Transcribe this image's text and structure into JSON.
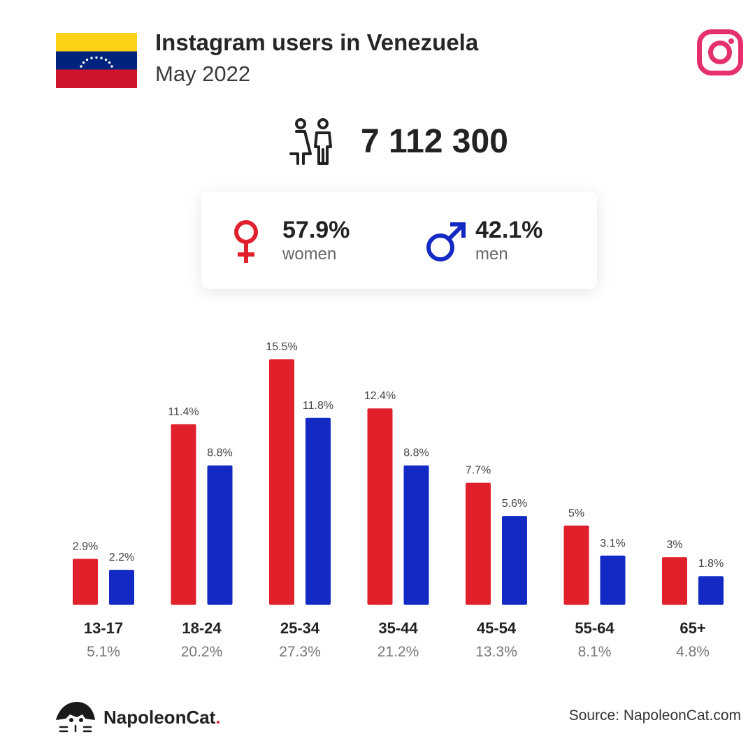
{
  "header": {
    "title": "Instagram users in Venezuela",
    "subtitle": "May 2022"
  },
  "total": {
    "value": "7 112 300",
    "icon": "people-icon"
  },
  "gender": {
    "women": {
      "percent": "57.9%",
      "label": "women",
      "icon": "female-symbol-icon",
      "color": "#e0212b"
    },
    "men": {
      "percent": "42.1%",
      "label": "men",
      "icon": "male-symbol-icon",
      "color": "#1229c4"
    }
  },
  "chart_data": {
    "type": "bar",
    "categories": [
      "13-17",
      "18-24",
      "25-34",
      "35-44",
      "45-54",
      "55-64",
      "65+"
    ],
    "category_totals": [
      "5.1%",
      "20.2%",
      "27.3%",
      "21.2%",
      "13.3%",
      "8.1%",
      "4.8%"
    ],
    "series": [
      {
        "values": [
          2.9,
          11.4,
          15.5,
          12.4,
          7.7,
          5,
          3
        ],
        "labels": [
          "2.9%",
          "11.4%",
          "15.5%",
          "12.4%",
          "7.7%",
          "5%",
          "3%"
        ],
        "color": "#e0212b"
      },
      {
        "values": [
          2.2,
          8.8,
          11.8,
          8.8,
          5.6,
          3.1,
          1.8
        ],
        "labels": [
          "2.2%",
          "8.8%",
          "11.8%",
          "8.8%",
          "5.6%",
          "3.1%",
          "1.8%"
        ],
        "color": "#1229c4"
      }
    ],
    "ylim": [
      0,
      15.5
    ],
    "grid": false,
    "legend": "none"
  },
  "footer": {
    "brand_name": "NapoleonCat",
    "brand_suffix": ".",
    "source": "Source: NapoleonCat.com"
  },
  "colors": {
    "women": "#e0212b",
    "men": "#1229c4",
    "instagram_pink": "#e4316b"
  }
}
